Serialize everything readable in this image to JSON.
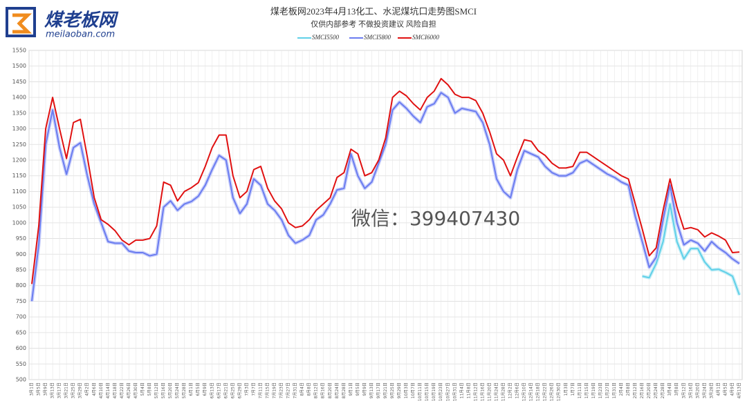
{
  "logo": {
    "name": "煤老板网",
    "site": "meilaoban.com"
  },
  "chart_data": {
    "type": "line",
    "title": "煤老板网2023年4月13化工、水泥煤坑口走势图SMCI",
    "subtitle": "仅供内部参考 不做投资建议 风险自担",
    "annotation": "微信：399407430",
    "categories": [
      "3月1日",
      "3月5日",
      "3月9日",
      "3月13日",
      "3月17日",
      "3月21日",
      "3月25日",
      "3月29日",
      "4月2日",
      "4月6日",
      "4月10日",
      "4月14日",
      "4月18日",
      "4月22日",
      "4月26日",
      "4月30日",
      "5月4日",
      "5月8日",
      "5月12日",
      "5月16日",
      "5月20日",
      "5月24日",
      "5月28日",
      "6月1日",
      "6月5日",
      "6月9日",
      "6月13日",
      "6月17日",
      "6月21日",
      "6月25日",
      "6月29日",
      "7月3日",
      "7月7日",
      "7月11日",
      "7月15日",
      "7月19日",
      "7月23日",
      "7月27日",
      "7月31日",
      "8月4日",
      "8月8日",
      "8月12日",
      "8月16日",
      "8月20日",
      "8月24日",
      "8月28日",
      "9月1日",
      "9月5日",
      "9月9日",
      "9月13日",
      "9月17日",
      "9月21日",
      "9月25日",
      "9月29日",
      "10月3日",
      "10月7日",
      "10月11日",
      "10月15日",
      "10月19日",
      "10月23日",
      "10月27日",
      "10月31日",
      "11月4日",
      "11月8日",
      "11月12日",
      "11月16日",
      "11月20日",
      "11月24日",
      "11月28日",
      "12月2日",
      "12月6日",
      "12月10日",
      "12月14日",
      "12月18日",
      "12月22日",
      "12月26日",
      "12月30日",
      "1月3日",
      "1月7日",
      "1月11日",
      "1月15日",
      "1月19日",
      "1月23日",
      "1月27日",
      "1月31日",
      "2月4日",
      "2月8日",
      "2月12日",
      "2月16日",
      "2月20日",
      "2月24日",
      "2月28日",
      "3月4日",
      "3月8日",
      "3月12日",
      "3月16日",
      "3月20日",
      "3月24日",
      "3月28日",
      "4月1日",
      "4月5日",
      "4月9日",
      "4月13日"
    ],
    "series": [
      {
        "name": "SMCI5500",
        "color": "#5fd0e8",
        "values": [
          null,
          null,
          null,
          null,
          null,
          null,
          null,
          null,
          null,
          null,
          null,
          null,
          null,
          null,
          null,
          null,
          null,
          null,
          null,
          null,
          null,
          null,
          null,
          null,
          null,
          null,
          null,
          null,
          null,
          null,
          null,
          null,
          null,
          null,
          null,
          null,
          null,
          null,
          null,
          null,
          null,
          null,
          null,
          null,
          null,
          null,
          null,
          null,
          null,
          null,
          null,
          null,
          null,
          null,
          null,
          null,
          null,
          null,
          null,
          null,
          null,
          null,
          null,
          null,
          null,
          null,
          null,
          null,
          null,
          null,
          null,
          null,
          null,
          null,
          null,
          null,
          null,
          null,
          null,
          null,
          null,
          null,
          null,
          null,
          null,
          null,
          null,
          null,
          830,
          825,
          870,
          940,
          1060,
          940,
          885,
          918,
          918,
          875,
          850,
          852,
          842,
          830,
          770
        ]
      },
      {
        "name": "SMCI5800",
        "color": "#6a7cf0",
        "values": [
          750,
          930,
          1250,
          1360,
          1240,
          1155,
          1240,
          1255,
          1150,
          1060,
          1000,
          940,
          935,
          935,
          910,
          905,
          905,
          895,
          900,
          1050,
          1070,
          1040,
          1060,
          1068,
          1085,
          1120,
          1170,
          1215,
          1200,
          1080,
          1030,
          1060,
          1140,
          1120,
          1060,
          1040,
          1010,
          960,
          935,
          945,
          960,
          1010,
          1025,
          1060,
          1105,
          1110,
          1220,
          1150,
          1110,
          1130,
          1190,
          1250,
          1360,
          1385,
          1365,
          1340,
          1320,
          1370,
          1380,
          1415,
          1400,
          1350,
          1365,
          1360,
          1355,
          1320,
          1250,
          1140,
          1100,
          1080,
          1170,
          1230,
          1220,
          1210,
          1180,
          1160,
          1150,
          1150,
          1160,
          1190,
          1200,
          1185,
          1170,
          1155,
          1145,
          1130,
          1120,
          1020,
          940,
          858,
          890,
          1010,
          1120,
          1000,
          930,
          945,
          935,
          910,
          940,
          920,
          905,
          885,
          870
        ]
      },
      {
        "name": "SMCI6000",
        "color": "#e01010",
        "values": [
          805,
          990,
          1300,
          1400,
          1300,
          1205,
          1320,
          1330,
          1210,
          1080,
          1010,
          995,
          975,
          945,
          930,
          945,
          945,
          950,
          990,
          1130,
          1120,
          1070,
          1100,
          1112,
          1128,
          1180,
          1240,
          1280,
          1280,
          1150,
          1080,
          1100,
          1170,
          1180,
          1110,
          1070,
          1045,
          1000,
          985,
          990,
          1010,
          1040,
          1060,
          1080,
          1145,
          1160,
          1235,
          1220,
          1150,
          1160,
          1200,
          1270,
          1400,
          1420,
          1405,
          1380,
          1360,
          1400,
          1420,
          1460,
          1440,
          1410,
          1400,
          1400,
          1390,
          1350,
          1290,
          1220,
          1200,
          1150,
          1210,
          1265,
          1260,
          1230,
          1215,
          1190,
          1175,
          1175,
          1180,
          1225,
          1225,
          1210,
          1195,
          1180,
          1165,
          1150,
          1140,
          1060,
          980,
          895,
          920,
          1040,
          1140,
          1050,
          980,
          985,
          978,
          955,
          968,
          958,
          945,
          905,
          907
        ]
      }
    ],
    "ylim": [
      500,
      1550
    ],
    "yticks": [
      500,
      550,
      600,
      650,
      700,
      750,
      800,
      850,
      900,
      950,
      1000,
      1050,
      1100,
      1150,
      1200,
      1250,
      1300,
      1350,
      1400,
      1450,
      1500,
      1550
    ],
    "grid": true
  }
}
